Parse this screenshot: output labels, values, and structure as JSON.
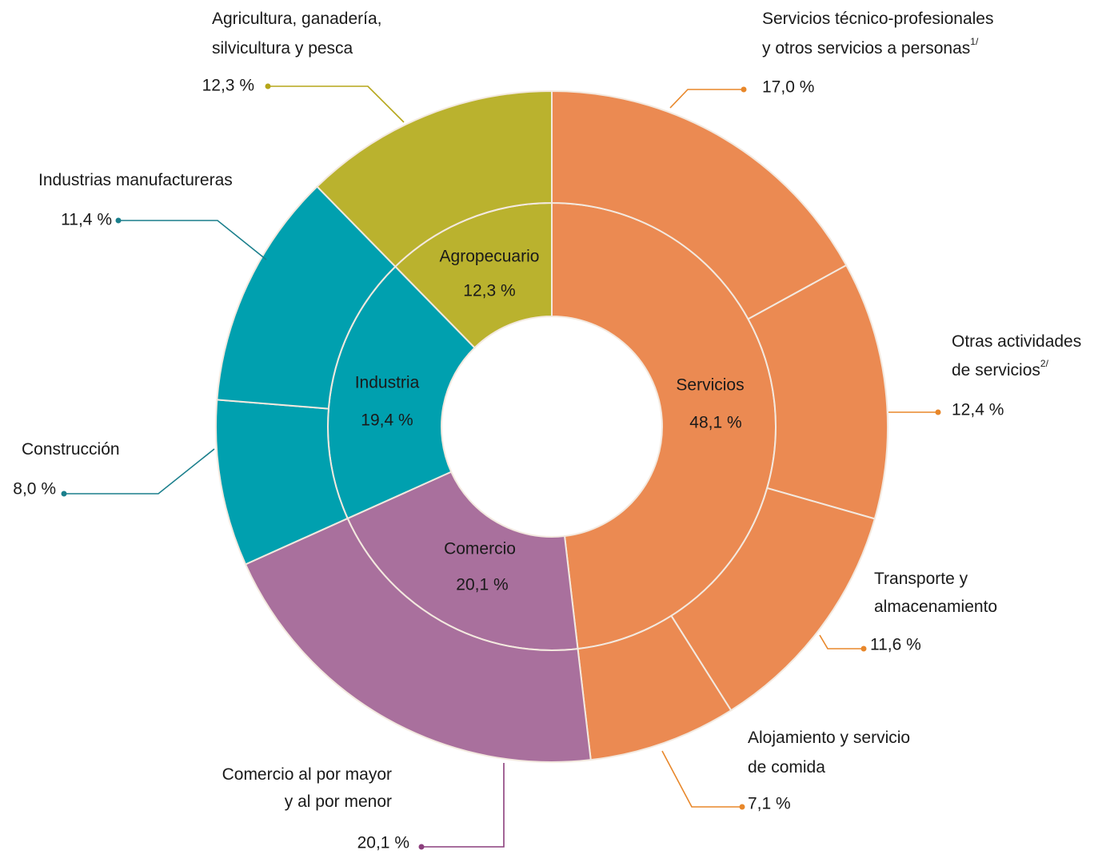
{
  "chart_data": {
    "type": "sunburst",
    "groups": [
      {
        "name": "Servicios",
        "value": 48.1,
        "value_label": "48,1 %",
        "color": "#EB8A52",
        "line_color": "#E8872A",
        "children": [
          {
            "name": [
              "Servicios técnico-profesionales",
              "y otros servicios a personas"
            ],
            "footnote": "1/",
            "value": 17.0,
            "value_label": "17,0 %"
          },
          {
            "name": [
              "Otras actividades",
              "de servicios"
            ],
            "footnote": "2/",
            "value": 12.4,
            "value_label": "12,4 %"
          },
          {
            "name": [
              "Transporte y",
              "almacenamiento"
            ],
            "value": 11.6,
            "value_label": "11,6 %"
          },
          {
            "name": [
              "Alojamiento y servicio",
              "de comida"
            ],
            "value": 7.1,
            "value_label": "7,1 %"
          }
        ]
      },
      {
        "name": "Comercio",
        "value": 20.1,
        "value_label": "20,1 %",
        "color": "#A9709D",
        "line_color": "#8C3F7D",
        "children": [
          {
            "name": [
              "Comercio al por mayor",
              "y al por menor"
            ],
            "value": 20.1,
            "value_label": "20,1 %"
          }
        ]
      },
      {
        "name": "Industria",
        "value": 19.4,
        "value_label": "19,4 %",
        "color": "#00A0AF",
        "line_color": "#1A7F8C",
        "children": [
          {
            "name": [
              "Construcción"
            ],
            "value": 8.0,
            "value_label": "8,0 %"
          },
          {
            "name": [
              "Industrias manufactureras"
            ],
            "value": 11.4,
            "value_label": "11,4 %"
          }
        ]
      },
      {
        "name": "Agropecuario",
        "value": 12.3,
        "value_label": "12,3 %",
        "color": "#BAB22E",
        "line_color": "#B5A619",
        "children": [
          {
            "name": [
              "Agricultura, ganadería,",
              "silvicultura y pesca"
            ],
            "value": 12.3,
            "value_label": "12,3 %"
          }
        ]
      }
    ]
  }
}
